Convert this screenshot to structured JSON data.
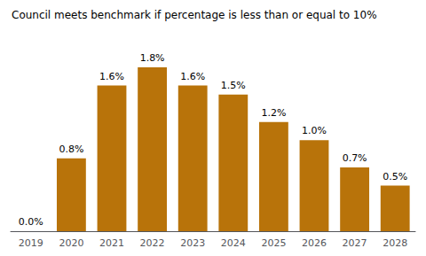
{
  "chart_data": {
    "type": "bar",
    "title": "Council meets benchmark if percentage is less than or equal to 10%",
    "categories": [
      "2019",
      "2020",
      "2021",
      "2022",
      "2023",
      "2024",
      "2025",
      "2026",
      "2027",
      "2028"
    ],
    "values": [
      0.0,
      0.8,
      1.6,
      1.8,
      1.6,
      1.5,
      1.2,
      1.0,
      0.7,
      0.5
    ],
    "value_labels": [
      "0.0%",
      "0.8%",
      "1.6%",
      "1.8%",
      "1.6%",
      "1.5%",
      "1.2%",
      "1.0%",
      "0.7%",
      "0.5%"
    ],
    "color": "#B8730A",
    "ylim": [
      0,
      2.15
    ],
    "data_labels": true,
    "tick_labels": "x",
    "grid": false
  }
}
